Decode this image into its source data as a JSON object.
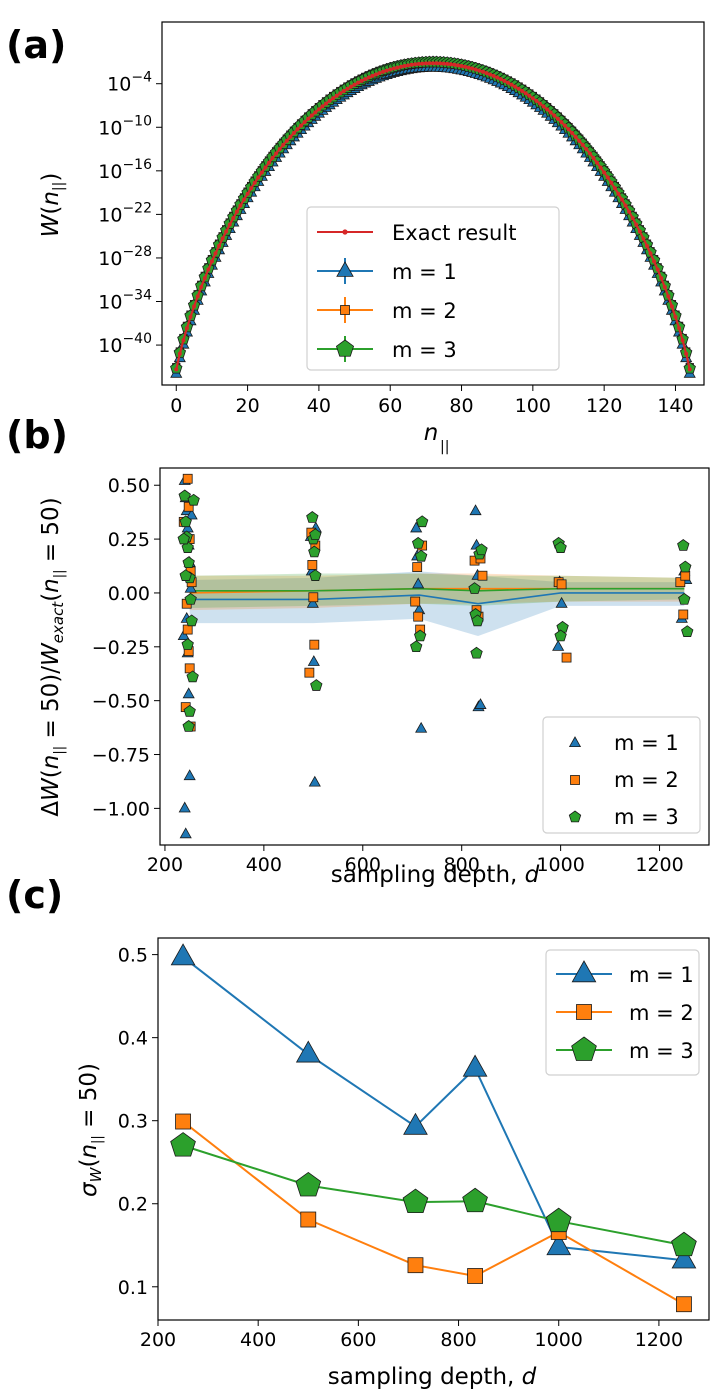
{
  "figure": {
    "panel_letters": [
      "(a)",
      "(b)",
      "(c)"
    ]
  },
  "colors": {
    "m1": "#1f77b4",
    "m2": "#ff7f0e",
    "m3": "#2ca02c",
    "exact": "#d62728"
  },
  "chart_data": [
    {
      "panel": "(a)",
      "type": "line",
      "xlabel": "n_∥",
      "ylabel": "W(n_∥)",
      "yscale": "log",
      "xlim": [
        -4,
        148
      ],
      "ylim_log10": [
        -45.5,
        4.5
      ],
      "xticks": [
        0,
        20,
        40,
        60,
        80,
        100,
        120,
        140
      ],
      "yticks": [
        {
          "exp": "-4",
          "log": -4
        },
        {
          "exp": "-10",
          "log": -10
        },
        {
          "exp": "-16",
          "log": -16
        },
        {
          "exp": "-22",
          "log": -22
        },
        {
          "exp": "-28",
          "log": -28
        },
        {
          "exp": "-34",
          "log": -34
        },
        {
          "exp": "-40",
          "log": -40
        }
      ],
      "N": 144,
      "series": [
        {
          "name": "Exact result",
          "color": "#d62728",
          "marker": "dot",
          "offset_log10": 0
        },
        {
          "name": "m = 1",
          "color": "#1f77b4",
          "marker": "triangle",
          "offset_log10": -0.6
        },
        {
          "name": "m = 2",
          "color": "#ff7f0e",
          "marker": "square",
          "offset_log10": 0.3
        },
        {
          "name": "m = 3",
          "color": "#2ca02c",
          "marker": "pentagon",
          "offset_log10": 0.15
        }
      ],
      "legend": [
        "Exact result",
        "m = 1",
        "m = 2",
        "m = 3"
      ],
      "legend_loc": "lower center"
    },
    {
      "panel": "(b)",
      "type": "scatter",
      "xlabel": "sampling depth, d",
      "ylabel": "ΔW(n_∥ = 50)/W_exact(n_∥ = 50)",
      "xlim": [
        190,
        1300
      ],
      "ylim": [
        -1.17,
        0.58
      ],
      "xticks": [
        200,
        400,
        600,
        800,
        1000,
        1200
      ],
      "yticks": [
        "0.50",
        "0.25",
        "0.00",
        "−0.25",
        "−0.50",
        "−0.75",
        "−1.00"
      ],
      "ytick_values": [
        0.5,
        0.25,
        0.0,
        -0.25,
        -0.5,
        -0.75,
        -1.0
      ],
      "depths": [
        250,
        500,
        714,
        833,
        1000,
        1250
      ],
      "series": [
        {
          "name": "m = 1",
          "color": "#1f77b4",
          "marker": "triangle",
          "mean": [
            -0.03,
            -0.03,
            -0.01,
            -0.05,
            0.0,
            0.0
          ],
          "band_low": [
            -0.14,
            -0.14,
            -0.12,
            -0.2,
            -0.06,
            -0.06
          ],
          "band_high": [
            0.06,
            0.07,
            0.1,
            0.08,
            0.05,
            0.05
          ],
          "points": [
            [
              240,
              0.52
            ],
            [
              242,
              0.44
            ],
            [
              244,
              0.38
            ],
            [
              246,
              0.3
            ],
            [
              248,
              0.22
            ],
            [
              250,
              0.14
            ],
            [
              252,
              0.02
            ],
            [
              244,
              -0.12
            ],
            [
              246,
              -0.28
            ],
            [
              248,
              -0.47
            ],
            [
              250,
              -0.85
            ],
            [
              240,
              -1.0
            ],
            [
              242,
              -1.12
            ],
            [
              254,
              0.36
            ],
            [
              238,
              -0.2
            ],
            [
              495,
              0.26
            ],
            [
              497,
              0.1
            ],
            [
              499,
              -0.05
            ],
            [
              501,
              -0.32
            ],
            [
              503,
              -0.88
            ],
            [
              505,
              0.3
            ],
            [
              708,
              0.3
            ],
            [
              710,
              0.17
            ],
            [
              712,
              0.04
            ],
            [
              714,
              -0.08
            ],
            [
              718,
              -0.63
            ],
            [
              828,
              0.38
            ],
            [
              830,
              0.22
            ],
            [
              832,
              0.08
            ],
            [
              834,
              -0.53
            ],
            [
              838,
              -0.52
            ],
            [
              995,
              -0.25
            ],
            [
              998,
              0.05
            ],
            [
              1002,
              -0.05
            ],
            [
              1245,
              -0.12
            ],
            [
              1250,
              0.1
            ],
            [
              1254,
              0.06
            ]
          ]
        },
        {
          "name": "m = 2",
          "color": "#ff7f0e",
          "marker": "square",
          "mean": [
            0.0,
            0.01,
            0.02,
            0.02,
            0.02,
            0.02
          ],
          "band_low": [
            -0.08,
            -0.07,
            -0.05,
            -0.05,
            -0.04,
            -0.04
          ],
          "band_high": [
            0.08,
            0.08,
            0.09,
            0.09,
            0.08,
            0.07
          ],
          "points": [
            [
              246,
              0.53
            ],
            [
              248,
              0.4
            ],
            [
              250,
              0.25
            ],
            [
              252,
              0.1
            ],
            [
              244,
              -0.05
            ],
            [
              246,
              -0.17
            ],
            [
              248,
              -0.27
            ],
            [
              250,
              -0.35
            ],
            [
              252,
              -0.62
            ],
            [
              242,
              -0.53
            ],
            [
              254,
              0.05
            ],
            [
              238,
              0.33
            ],
            [
              492,
              -0.37
            ],
            [
              496,
              0.28
            ],
            [
              498,
              0.13
            ],
            [
              500,
              -0.02
            ],
            [
              502,
              -0.24
            ],
            [
              504,
              0.22
            ],
            [
              706,
              -0.04
            ],
            [
              710,
              0.12
            ],
            [
              712,
              -0.11
            ],
            [
              716,
              -0.17
            ],
            [
              720,
              0.22
            ],
            [
              826,
              0.15
            ],
            [
              830,
              -0.08
            ],
            [
              834,
              -0.11
            ],
            [
              838,
              0.16
            ],
            [
              842,
              0.08
            ],
            [
              996,
              0.05
            ],
            [
              1002,
              0.04
            ],
            [
              1012,
              -0.3
            ],
            [
              1242,
              0.05
            ],
            [
              1248,
              -0.1
            ],
            [
              1252,
              0.08
            ]
          ]
        },
        {
          "name": "m = 3",
          "color": "#2ca02c",
          "marker": "pentagon",
          "mean": [
            0.01,
            0.01,
            0.02,
            0.01,
            0.02,
            0.02
          ],
          "band_low": [
            -0.07,
            -0.06,
            -0.05,
            -0.06,
            -0.04,
            -0.03
          ],
          "band_high": [
            0.08,
            0.09,
            0.09,
            0.08,
            0.08,
            0.07
          ],
          "points": [
            [
              240,
              0.45
            ],
            [
              242,
              0.33
            ],
            [
              244,
              0.26
            ],
            [
              246,
              0.21
            ],
            [
              248,
              0.14
            ],
            [
              250,
              0.07
            ],
            [
              252,
              -0.03
            ],
            [
              254,
              -0.13
            ],
            [
              246,
              -0.24
            ],
            [
              248,
              -0.62
            ],
            [
              256,
              -0.39
            ],
            [
              238,
              0.25
            ],
            [
              258,
              0.43
            ],
            [
              242,
              0.08
            ],
            [
              250,
              -0.55
            ],
            [
              498,
              0.35
            ],
            [
              500,
              0.25
            ],
            [
              502,
              0.19
            ],
            [
              504,
              0.08
            ],
            [
              506,
              -0.43
            ],
            [
              504,
              0.27
            ],
            [
              712,
              0.23
            ],
            [
              716,
              -0.2
            ],
            [
              720,
              0.33
            ],
            [
              708,
              -0.25
            ],
            [
              718,
              0.17
            ],
            [
              826,
              0.02
            ],
            [
              828,
              -0.1
            ],
            [
              830,
              -0.28
            ],
            [
              836,
              0.18
            ],
            [
              840,
              0.2
            ],
            [
              832,
              -0.13
            ],
            [
              996,
              0.23
            ],
            [
              1000,
              0.21
            ],
            [
              1004,
              -0.16
            ],
            [
              1000,
              -0.2
            ],
            [
              1248,
              0.22
            ],
            [
              1252,
              0.12
            ],
            [
              1256,
              -0.18
            ],
            [
              1250,
              -0.03
            ]
          ]
        }
      ],
      "legend": [
        "m = 1",
        "m = 2",
        "m = 3"
      ],
      "legend_loc": "lower right"
    },
    {
      "panel": "(c)",
      "type": "line",
      "xlabel": "sampling depth, d",
      "ylabel": "σ_W(n_∥ = 50)",
      "xlim": [
        200,
        1300
      ],
      "ylim": [
        0.06,
        0.52
      ],
      "xticks": [
        200,
        400,
        600,
        800,
        1000,
        1200
      ],
      "yticks": [
        "0.5",
        "0.4",
        "0.3",
        "0.2",
        "0.1"
      ],
      "ytick_values": [
        0.5,
        0.4,
        0.3,
        0.2,
        0.1
      ],
      "x": [
        250,
        500,
        714,
        833,
        1000,
        1250
      ],
      "series": [
        {
          "name": "m = 1",
          "color": "#1f77b4",
          "marker": "triangle",
          "values": [
            0.497,
            0.38,
            0.293,
            0.363,
            0.148,
            0.132
          ]
        },
        {
          "name": "m = 2",
          "color": "#ff7f0e",
          "marker": "square",
          "values": [
            0.299,
            0.181,
            0.126,
            0.113,
            0.166,
            0.079
          ]
        },
        {
          "name": "m = 3",
          "color": "#2ca02c",
          "marker": "pentagon",
          "values": [
            0.27,
            0.222,
            0.202,
            0.203,
            0.179,
            0.15
          ]
        }
      ],
      "legend": [
        "m = 1",
        "m = 2",
        "m = 3"
      ],
      "legend_loc": "upper right"
    }
  ]
}
